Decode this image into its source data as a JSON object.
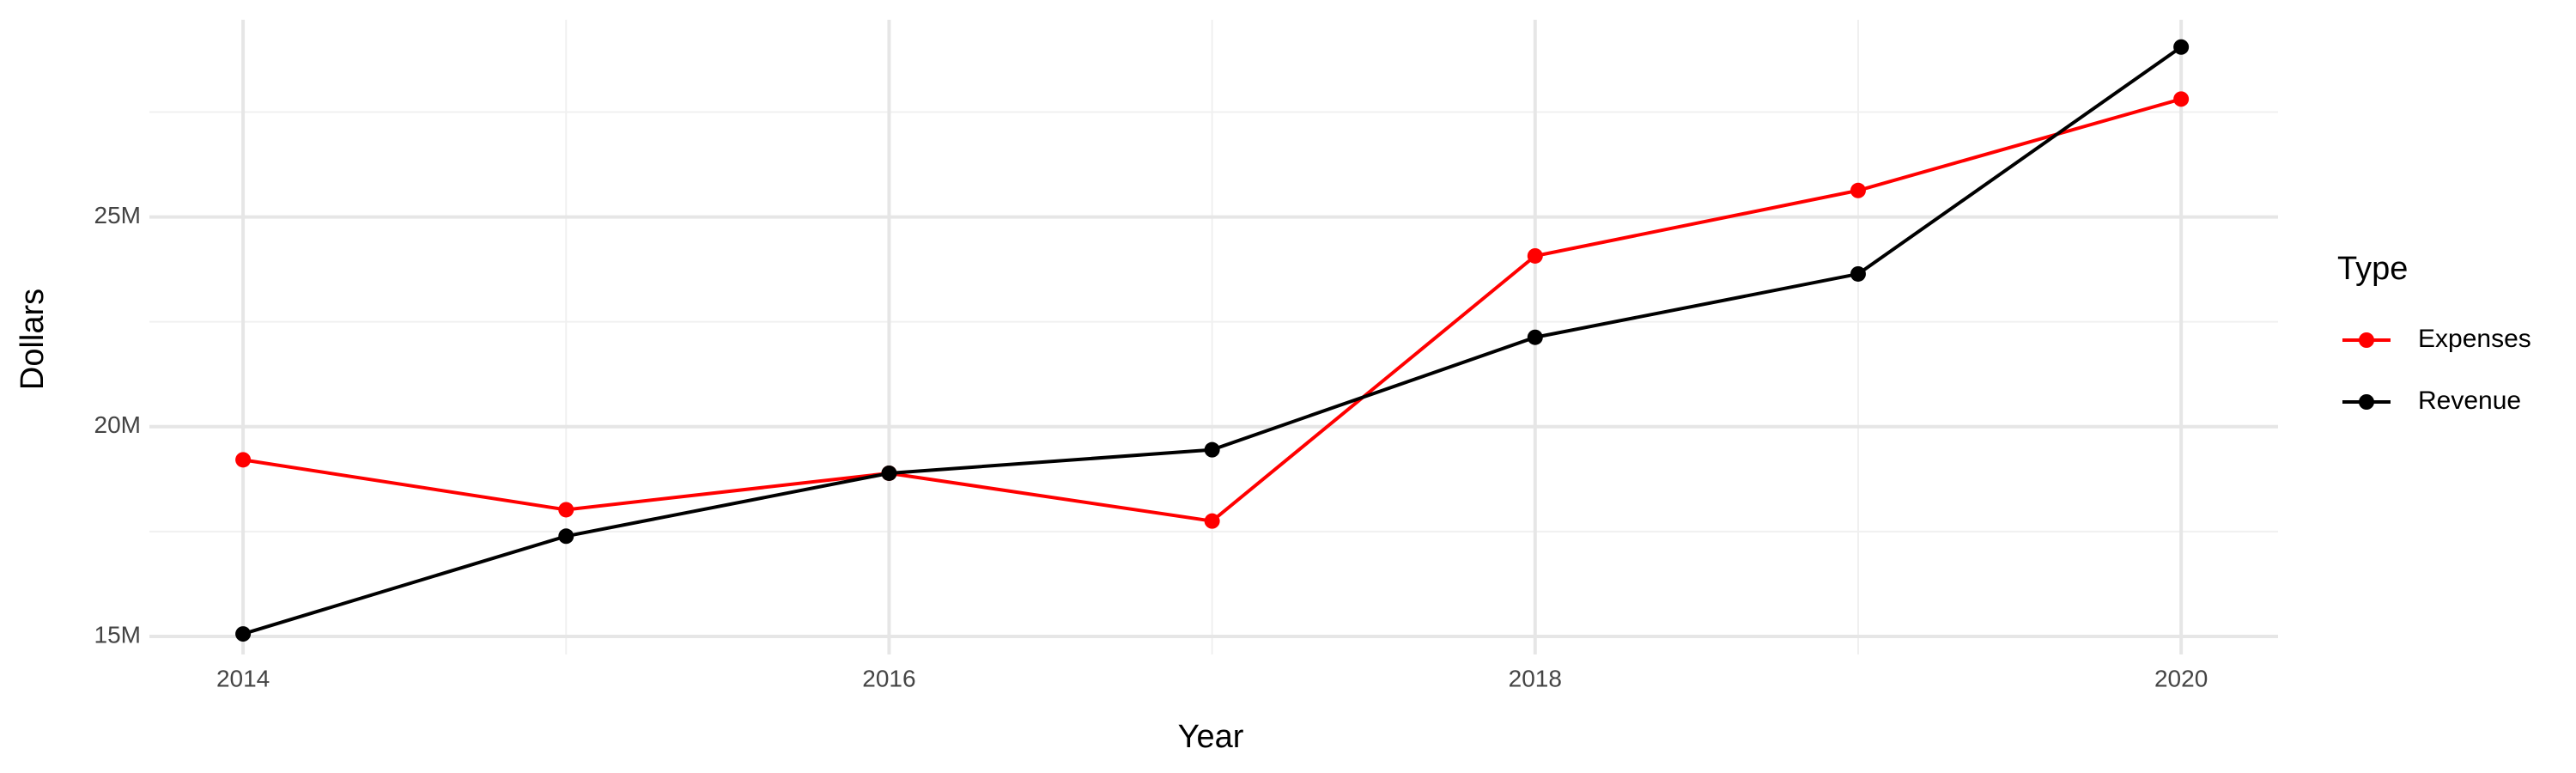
{
  "chart_data": {
    "type": "line",
    "x_label": "Year",
    "y_label": "Dollars",
    "legend_title": "Type",
    "x": [
      2014,
      2015,
      2016,
      2017,
      2018,
      2019,
      2020
    ],
    "series": [
      {
        "name": "Expenses",
        "color": "#ff0000",
        "values": [
          19210000,
          18020000,
          18890000,
          17750000,
          24070000,
          25630000,
          27810000
        ]
      },
      {
        "name": "Revenue",
        "color": "#000000",
        "values": [
          15060000,
          17390000,
          18890000,
          19450000,
          22130000,
          23640000,
          29050000
        ]
      }
    ],
    "xlim": [
      2013.71,
      2020.3
    ],
    "xticks": [
      2014,
      2016,
      2018,
      2020
    ],
    "xminorticks": [
      2015,
      2017,
      2019
    ],
    "ylim": [
      14570000,
      29700000
    ],
    "yticks": [
      {
        "value": 15000000,
        "label": "15M"
      },
      {
        "value": 20000000,
        "label": "20M"
      },
      {
        "value": 25000000,
        "label": "25M"
      }
    ],
    "yminorticks": [
      17500000,
      22500000,
      27500000
    ],
    "grid": true,
    "legend_position": "right"
  }
}
